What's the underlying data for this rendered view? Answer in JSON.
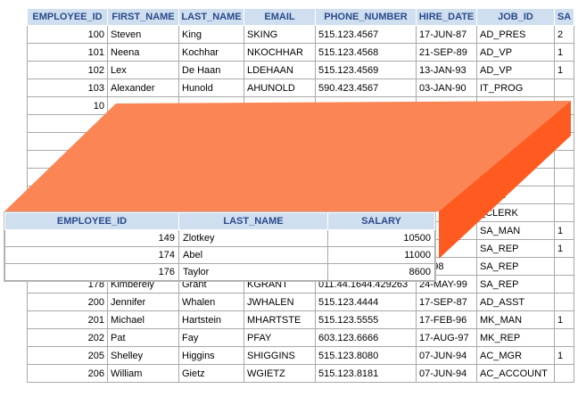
{
  "background_table": {
    "headers": [
      "EMPLOYEE_ID",
      "FIRST_NAME",
      "LAST_NAME",
      "EMAIL",
      "PHONE_NUMBER",
      "HIRE_DATE",
      "JOB_ID",
      "SA"
    ],
    "rows": [
      [
        "100",
        "Steven",
        "King",
        "SKING",
        "515.123.4567",
        "17-JUN-87",
        "AD_PRES",
        "2"
      ],
      [
        "101",
        "Neena",
        "Kochhar",
        "NKOCHHAR",
        "515.123.4568",
        "21-SEP-89",
        "AD_VP",
        "1"
      ],
      [
        "102",
        "Lex",
        "De Haan",
        "LDEHAAN",
        "515.123.4569",
        "13-JAN-93",
        "AD_VP",
        "1"
      ],
      [
        "103",
        "Alexander",
        "Hunold",
        "AHUNOLD",
        "590.423.4567",
        "03-JAN-90",
        "IT_PROG",
        ""
      ],
      [
        "10",
        "",
        "",
        "",
        "",
        "",
        "",
        ""
      ],
      [
        "",
        "",
        "",
        "",
        "",
        "",
        "",
        ""
      ],
      [
        "",
        "",
        "",
        "",
        "",
        "",
        "",
        ""
      ],
      [
        "",
        "",
        "",
        "",
        "",
        "",
        "",
        ""
      ],
      [
        "",
        "",
        "",
        "",
        "",
        "",
        "RK",
        ""
      ],
      [
        "",
        "",
        "",
        "",
        "",
        "",
        "LERK",
        ""
      ],
      [
        "",
        "",
        "",
        "",
        "",
        "",
        "_CLERK",
        ""
      ],
      [
        "",
        "",
        "",
        "",
        "",
        "",
        "SA_MAN",
        "1"
      ],
      [
        "",
        "",
        "",
        "",
        "",
        "-96",
        "SA_REP",
        "1"
      ],
      [
        "",
        "",
        "",
        "",
        "",
        "-R-98",
        "SA_REP",
        ""
      ],
      [
        "178",
        "Kimberely",
        "Grant",
        "KGRANT",
        "011.44.1644.429263",
        "24-MAY-99",
        "SA_REP",
        ""
      ],
      [
        "200",
        "Jennifer",
        "Whalen",
        "JWHALEN",
        "515.123.4444",
        "17-SEP-87",
        "AD_ASST",
        ""
      ],
      [
        "201",
        "Michael",
        "Hartstein",
        "MHARTSTE",
        "515.123.5555",
        "17-FEB-96",
        "MK_MAN",
        "1"
      ],
      [
        "202",
        "Pat",
        "Fay",
        "PFAY",
        "603.123.6666",
        "17-AUG-97",
        "MK_REP",
        ""
      ],
      [
        "205",
        "Shelley",
        "Higgins",
        "SHIGGINS",
        "515.123.8080",
        "07-JUN-94",
        "AC_MGR",
        "1"
      ],
      [
        "206",
        "William",
        "Gietz",
        "WGIETZ",
        "515.123.8181",
        "07-JUN-94",
        "AC_ACCOUNT",
        ""
      ]
    ]
  },
  "result_table": {
    "headers": [
      "EMPLOYEE_ID",
      "LAST_NAME",
      "SALARY"
    ],
    "rows": [
      [
        "149",
        "Zlotkey",
        "10500"
      ],
      [
        "174",
        "Abel",
        "11000"
      ],
      [
        "176",
        "Taylor",
        "8600"
      ]
    ]
  },
  "colors": {
    "slab_top": "#fb8554",
    "slab_front": "#ff5a1f",
    "slab_side": "#e2491a",
    "header_bg": "#cfdff0",
    "header_text": "#2a4a8a"
  }
}
